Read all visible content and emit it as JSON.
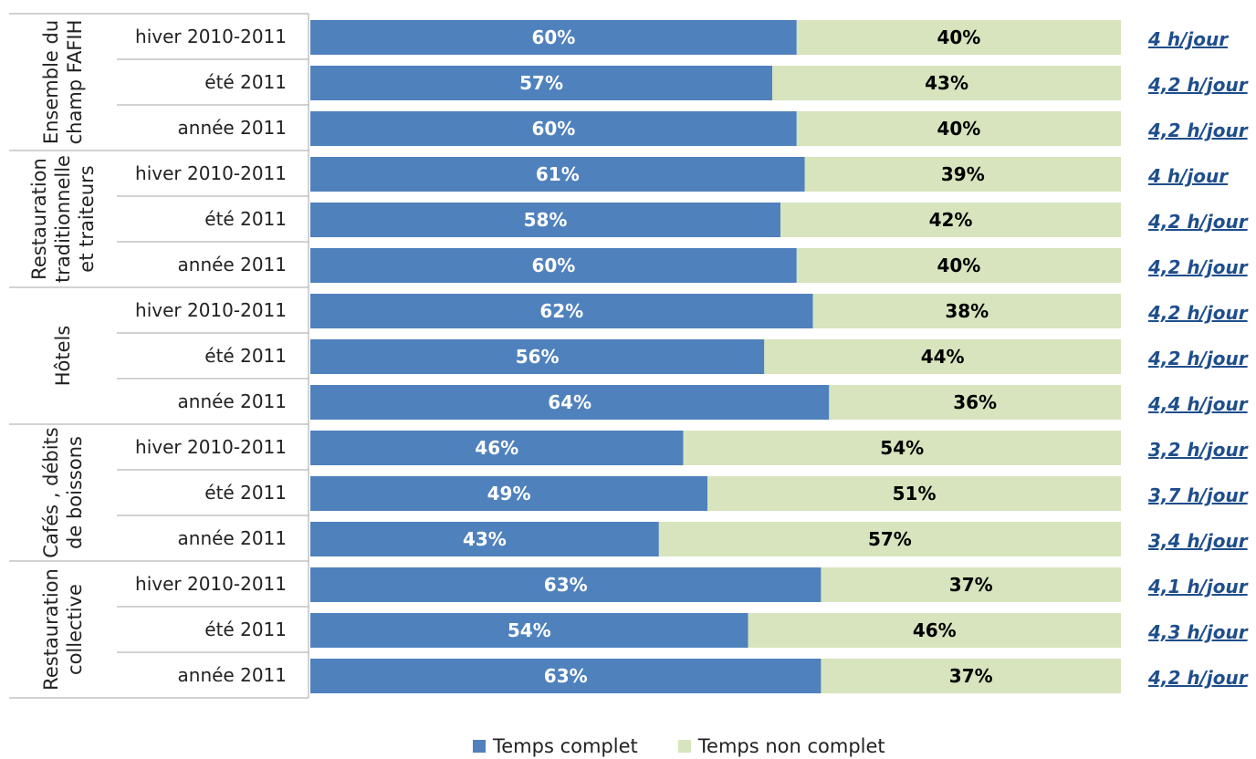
{
  "chart_data": {
    "type": "bar",
    "stacked": true,
    "orientation": "horizontal",
    "percent_stacked": true,
    "groups": [
      {
        "label": "Ensemble du champ FAFIH",
        "label_lines": [
          "Ensemble du",
          "champ FAFIH"
        ],
        "rows": [
          {
            "period": "hiver 2010-2011",
            "full": 60,
            "part": 40,
            "avg": "4 h/jour"
          },
          {
            "period": "été 2011",
            "full": 57,
            "part": 43,
            "avg": "4,2 h/jour"
          },
          {
            "period": "année 2011",
            "full": 60,
            "part": 40,
            "avg": "4,2 h/jour"
          }
        ]
      },
      {
        "label": "Restauration traditionnelle et traiteurs",
        "label_lines": [
          "Restauration",
          "traditionnelle",
          "et traiteurs"
        ],
        "rows": [
          {
            "period": "hiver 2010-2011",
            "full": 61,
            "part": 39,
            "avg": "4 h/jour"
          },
          {
            "period": "été 2011",
            "full": 58,
            "part": 42,
            "avg": "4,2 h/jour"
          },
          {
            "period": "année 2011",
            "full": 60,
            "part": 40,
            "avg": "4,2 h/jour"
          }
        ]
      },
      {
        "label": "Hôtels",
        "label_lines": [
          "Hôtels"
        ],
        "rows": [
          {
            "period": "hiver 2010-2011",
            "full": 62,
            "part": 38,
            "avg": "4,2 h/jour"
          },
          {
            "period": "été 2011",
            "full": 56,
            "part": 44,
            "avg": "4,2 h/jour"
          },
          {
            "period": "année 2011",
            "full": 64,
            "part": 36,
            "avg": "4,4 h/jour"
          }
        ]
      },
      {
        "label": "Cafés , débits de boissons",
        "label_lines": [
          "Cafés , débits",
          "de boissons"
        ],
        "rows": [
          {
            "period": "hiver 2010-2011",
            "full": 46,
            "part": 54,
            "avg": "3,2 h/jour"
          },
          {
            "period": "été 2011",
            "full": 49,
            "part": 51,
            "avg": "3,7 h/jour"
          },
          {
            "period": "année 2011",
            "full": 43,
            "part": 57,
            "avg": "3,4 h/jour"
          }
        ]
      },
      {
        "label": "Restauration collective",
        "label_lines": [
          "Restauration",
          "collective"
        ],
        "rows": [
          {
            "period": "hiver 2010-2011",
            "full": 63,
            "part": 37,
            "avg": "4,1 h/jour"
          },
          {
            "period": "été 2011",
            "full": 54,
            "part": 46,
            "avg": "4,3 h/jour"
          },
          {
            "period": "année 2011",
            "full": 63,
            "part": 37,
            "avg": "4,2 h/jour"
          }
        ]
      }
    ],
    "series": [
      {
        "name": "Temps complet",
        "key": "full",
        "color": "#4f81bd",
        "label_color": "#ffffff"
      },
      {
        "name": "Temps non complet",
        "key": "part",
        "color": "#d7e4bd",
        "label_color": "#000000"
      }
    ],
    "value_suffix": "%",
    "xlim": [
      0,
      100
    ],
    "grid": false,
    "legend_position": "bottom"
  },
  "legend": {
    "full_label": "Temps complet",
    "part_label": "Temps non complet",
    "full_color": "#4f81bd",
    "part_color": "#d7e4bd"
  }
}
